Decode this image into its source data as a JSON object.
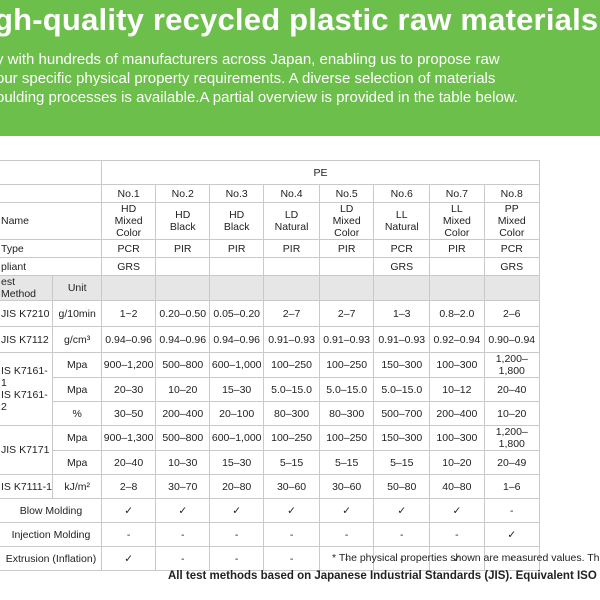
{
  "header": {
    "title": "gh-quality recycled plastic raw materials",
    "intro": [
      "y with hundreds of manufacturers across Japan, enabling us to propose raw",
      "our specific physical property requirements. A diverse selection of materials",
      "oulding processes is available.A partial overview is provided in the table below."
    ]
  },
  "table": {
    "group_label": "PE",
    "col_numbers": [
      "No.1",
      "No.2",
      "No.3",
      "No.4",
      "No.5",
      "No.6",
      "No.7",
      "No.8"
    ],
    "name_label": "Name",
    "names": [
      [
        "HD",
        "Mixed Color"
      ],
      [
        "HD",
        "Black"
      ],
      [
        "HD",
        "Black"
      ],
      [
        "LD",
        "Natural"
      ],
      [
        "LD",
        "Mixed Color"
      ],
      [
        "LL",
        "Natural"
      ],
      [
        "LL",
        "Mixed Color"
      ],
      [
        "PP",
        "Mixed Color"
      ]
    ],
    "type_label": "Type",
    "types": [
      "PCR",
      "PIR",
      "PIR",
      "PIR",
      "PIR",
      "PCR",
      "PIR",
      "PCR"
    ],
    "compliant_label": "pliant",
    "compliant": [
      "GRS",
      "",
      "",
      "",
      "",
      "GRS",
      "",
      "GRS"
    ],
    "test_method_label": "est Method",
    "unit_label": "Unit",
    "rows": [
      {
        "method": "JIS K7210",
        "unit": "g/10min",
        "values": [
          "1~2",
          "0.20–0.50",
          "0.05–0.20",
          "2–7",
          "2–7",
          "1–3",
          "0.8–2.0",
          "2–6"
        ]
      },
      {
        "method": "JIS K7112",
        "unit": "g/cm³",
        "values": [
          "0.94–0.96",
          "0.94–0.96",
          "0.94–0.96",
          "0.91–0.93",
          "0.91–0.93",
          "0.91–0.93",
          "0.92–0.94",
          "0.90–0.94"
        ]
      },
      {
        "method": "",
        "unit": "Mpa",
        "values": [
          "900–1,200",
          "500–800",
          "600–1,000",
          "100–250",
          "100–250",
          "150–300",
          "100–300",
          "1,200–1,800"
        ]
      },
      {
        "method": "IS K7161-1",
        "method2": "IS K7161-2",
        "unit": "Mpa",
        "values": [
          "20–30",
          "10–20",
          "15–30",
          "5.0–15.0",
          "5.0–15.0",
          "5.0–15.0",
          "10–12",
          "20–40"
        ]
      },
      {
        "method": "",
        "unit": "%",
        "values": [
          "30–50",
          "200–400",
          "20–100",
          "80–300",
          "80–300",
          "500–700",
          "200–400",
          "10–20"
        ]
      },
      {
        "method": "JIS K7171",
        "unit": "Mpa",
        "values": [
          "900–1,300",
          "500–800",
          "600–1,000",
          "100–250",
          "100–250",
          "150–300",
          "100–300",
          "1,200–1,800"
        ]
      },
      {
        "method": "",
        "unit": "Mpa",
        "values": [
          "20–40",
          "10–30",
          "15–30",
          "5–15",
          "5–15",
          "5–15",
          "10–20",
          "20–49"
        ]
      },
      {
        "method": "IS K7111-1",
        "unit": "kJ/m²",
        "values": [
          "2–8",
          "30–70",
          "20–80",
          "30–60",
          "30–60",
          "50–80",
          "40–80",
          "1–6"
        ]
      }
    ],
    "processes": [
      {
        "label": "Blow Molding",
        "values": [
          "✓",
          "✓",
          "✓",
          "✓",
          "✓",
          "✓",
          "✓",
          "-"
        ]
      },
      {
        "label": "Injection Molding",
        "values": [
          "-",
          "-",
          "-",
          "-",
          "-",
          "-",
          "-",
          "✓"
        ]
      },
      {
        "label": "Extrusion (Inflation)",
        "values": [
          "✓",
          "-",
          "-",
          "-",
          "-",
          "-",
          "✓",
          "-"
        ]
      }
    ]
  },
  "notes": {
    "line1": "* The physical properties shown are measured values. The",
    "line2": "All test methods based on Japanese Industrial Standards (JIS). Equivalent ISO stan"
  },
  "colors": {
    "accent": "#6cbf4a",
    "border": "#c9c9c9",
    "header_gray": "#e6e6e6"
  }
}
